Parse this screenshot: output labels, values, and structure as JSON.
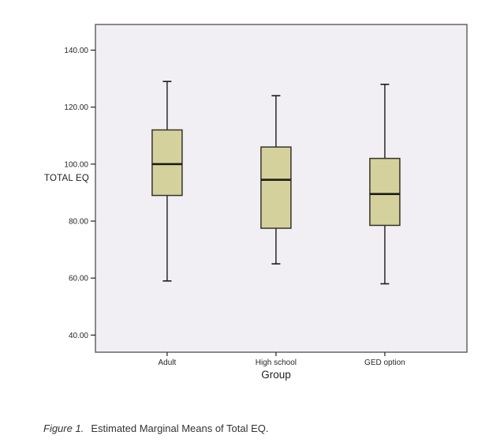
{
  "chart_data": {
    "type": "boxplot",
    "title": "",
    "xlabel": "Group",
    "ylabel": "TOTAL EQ",
    "categories": [
      "Adult",
      "High school",
      "GED option"
    ],
    "series": [
      {
        "name": "Adult",
        "min": 59,
        "q1": 89,
        "median": 100,
        "q3": 112,
        "max": 129
      },
      {
        "name": "High school",
        "min": 65,
        "q1": 77.5,
        "median": 94.5,
        "q3": 106,
        "max": 124
      },
      {
        "name": "GED option",
        "min": 58,
        "q1": 78.5,
        "median": 89.5,
        "q3": 102,
        "max": 128
      }
    ],
    "yticks": [
      {
        "value": 40,
        "label": "40.00"
      },
      {
        "value": 60,
        "label": "60.00"
      },
      {
        "value": 80,
        "label": "80.00"
      },
      {
        "value": 100,
        "label": "100.00"
      },
      {
        "value": 120,
        "label": "120.00"
      },
      {
        "value": 140,
        "label": "140.00"
      }
    ],
    "ylim": [
      34,
      149
    ],
    "grid": false,
    "legend": false,
    "colors": {
      "box_fill": "#d4d19c",
      "box_border": "#35342b",
      "median": "#1e1d18",
      "whisker": "#1a1a1a",
      "tick": "#222222",
      "plot_background": "#f1eff3",
      "plot_border": "#6e6e6e",
      "text": "#262626"
    }
  },
  "caption": {
    "label": "Figure 1.",
    "text": "Estimated Marginal Means of Total EQ."
  }
}
